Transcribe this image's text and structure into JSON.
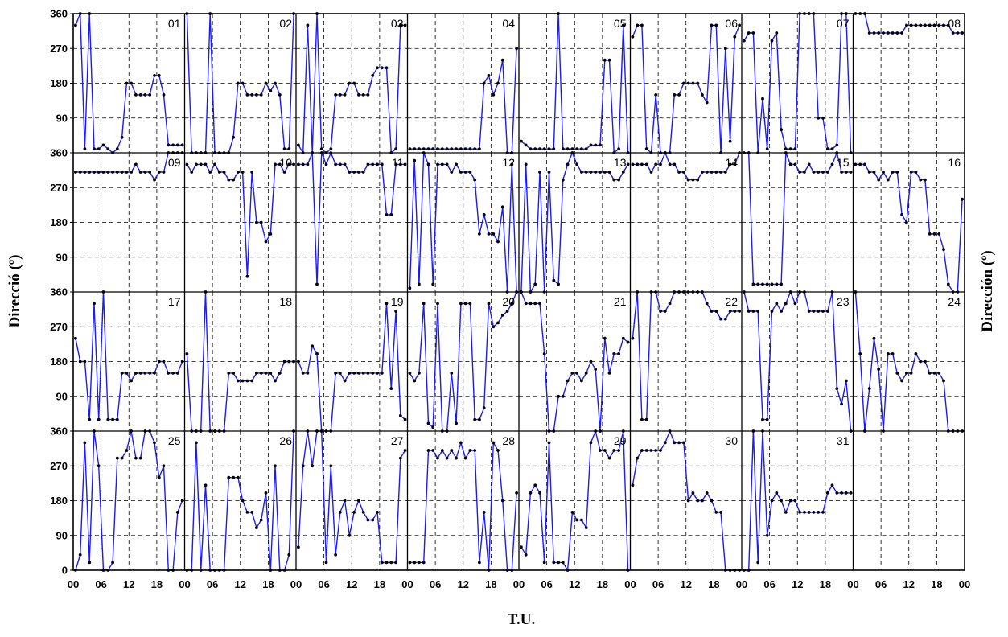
{
  "chart_data": {
    "type": "line",
    "xlabel": "T.U.",
    "ylabel_left": "Direcció (º)",
    "ylabel_right": "Dirección (º)",
    "ylim": [
      0,
      360
    ],
    "yticks": [
      "0",
      "90",
      "180",
      "270",
      "360"
    ],
    "xlim": [
      0,
      24
    ],
    "xticks": [
      "00",
      "06",
      "12",
      "18"
    ],
    "grid": "dashed",
    "colors": {
      "line": "#1a1aff",
      "marker": "#000000",
      "grid": "#000000"
    },
    "days": [
      {
        "label": "01",
        "values": [
          330,
          360,
          10,
          360,
          10,
          10,
          20,
          10,
          0,
          10,
          40,
          180,
          180,
          150,
          150,
          150,
          150,
          200,
          200,
          150,
          20,
          20,
          20,
          20
        ]
      },
      {
        "label": "02",
        "values": [
          360,
          0,
          0,
          0,
          0,
          360,
          0,
          0,
          0,
          0,
          40,
          180,
          180,
          150,
          150,
          150,
          150,
          180,
          160,
          180,
          150,
          10,
          10,
          360
        ]
      },
      {
        "label": "03",
        "values": [
          20,
          0,
          330,
          0,
          360,
          10,
          0,
          10,
          150,
          150,
          150,
          180,
          180,
          150,
          150,
          150,
          200,
          220,
          220,
          220,
          0,
          10,
          330,
          330
        ]
      },
      {
        "label": "04",
        "values": [
          10,
          10,
          10,
          10,
          10,
          10,
          10,
          10,
          10,
          10,
          10,
          10,
          10,
          10,
          10,
          10,
          180,
          200,
          150,
          180,
          240,
          0,
          0,
          270
        ]
      },
      {
        "label": "05",
        "values": [
          30,
          20,
          10,
          10,
          10,
          10,
          10,
          10,
          360,
          10,
          10,
          10,
          10,
          10,
          10,
          20,
          20,
          20,
          240,
          240,
          0,
          10,
          330,
          0
        ]
      },
      {
        "label": "06",
        "values": [
          300,
          330,
          330,
          10,
          0,
          150,
          0,
          0,
          0,
          150,
          150,
          180,
          180,
          180,
          180,
          150,
          130,
          330,
          330,
          0,
          270,
          30,
          300,
          330
        ]
      },
      {
        "label": "07",
        "values": [
          290,
          310,
          310,
          0,
          140,
          10,
          290,
          310,
          60,
          10,
          10,
          10,
          360,
          360,
          360,
          360,
          90,
          90,
          10,
          10,
          20,
          360,
          360,
          0
        ]
      },
      {
        "label": "08",
        "values": [
          360,
          360,
          360,
          310,
          310,
          310,
          310,
          310,
          310,
          310,
          310,
          330,
          330,
          330,
          330,
          330,
          330,
          330,
          330,
          330,
          330,
          310,
          310,
          310
        ]
      },
      {
        "label": "09",
        "values": [
          310,
          310,
          310,
          310,
          310,
          310,
          310,
          310,
          310,
          310,
          310,
          310,
          310,
          330,
          310,
          310,
          310,
          290,
          310,
          310,
          360,
          360,
          360,
          360
        ]
      },
      {
        "label": "10",
        "values": [
          330,
          310,
          330,
          330,
          330,
          310,
          330,
          310,
          310,
          290,
          290,
          310,
          310,
          40,
          310,
          180,
          180,
          130,
          150,
          330,
          330,
          310,
          330,
          330
        ]
      },
      {
        "label": "11",
        "values": [
          330,
          330,
          330,
          360,
          20,
          360,
          330,
          360,
          330,
          330,
          330,
          310,
          310,
          310,
          310,
          330,
          330,
          330,
          330,
          200,
          200,
          330,
          330,
          330
        ]
      },
      {
        "label": "12",
        "values": [
          10,
          340,
          20,
          360,
          330,
          20,
          330,
          330,
          330,
          310,
          330,
          310,
          310,
          310,
          290,
          150,
          200,
          150,
          150,
          130,
          220,
          0,
          330,
          0
        ]
      },
      {
        "label": "13",
        "values": [
          0,
          330,
          0,
          20,
          310,
          0,
          310,
          30,
          20,
          290,
          330,
          360,
          330,
          310,
          310,
          310,
          310,
          310,
          310,
          310,
          290,
          290,
          310,
          330
        ]
      },
      {
        "label": "14",
        "values": [
          330,
          330,
          330,
          330,
          310,
          330,
          330,
          360,
          330,
          330,
          310,
          310,
          290,
          290,
          290,
          310,
          310,
          310,
          310,
          310,
          310,
          330,
          330,
          360
        ]
      },
      {
        "label": "15",
        "values": [
          360,
          360,
          20,
          20,
          20,
          20,
          20,
          20,
          20,
          360,
          330,
          330,
          310,
          310,
          330,
          310,
          310,
          310,
          310,
          330,
          360,
          310,
          310,
          310
        ]
      },
      {
        "label": "16",
        "values": [
          330,
          330,
          330,
          310,
          310,
          290,
          310,
          290,
          310,
          310,
          200,
          180,
          310,
          310,
          290,
          290,
          150,
          150,
          150,
          110,
          20,
          0,
          0,
          240
        ]
      },
      {
        "label": "17",
        "values": [
          240,
          180,
          180,
          30,
          330,
          30,
          360,
          30,
          30,
          30,
          150,
          150,
          130,
          150,
          150,
          150,
          150,
          150,
          180,
          180,
          150,
          150,
          150,
          180
        ]
      },
      {
        "label": "18",
        "values": [
          200,
          0,
          0,
          0,
          360,
          0,
          0,
          0,
          0,
          150,
          150,
          130,
          130,
          130,
          130,
          150,
          150,
          150,
          150,
          130,
          150,
          180,
          180,
          180
        ]
      },
      {
        "label": "19",
        "values": [
          180,
          150,
          150,
          220,
          200,
          0,
          0,
          0,
          150,
          150,
          130,
          150,
          150,
          150,
          150,
          150,
          150,
          150,
          150,
          330,
          110,
          310,
          40,
          30
        ]
      },
      {
        "label": "20",
        "values": [
          150,
          130,
          150,
          330,
          20,
          10,
          330,
          0,
          0,
          150,
          20,
          330,
          330,
          330,
          30,
          30,
          60,
          330,
          270,
          280,
          300,
          310,
          330,
          360
        ]
      },
      {
        "label": "21",
        "values": [
          360,
          330,
          330,
          330,
          330,
          200,
          0,
          0,
          90,
          90,
          130,
          150,
          150,
          130,
          150,
          180,
          160,
          0,
          240,
          150,
          200,
          200,
          240,
          230
        ]
      },
      {
        "label": "22",
        "values": [
          240,
          360,
          30,
          30,
          360,
          360,
          310,
          310,
          330,
          360,
          360,
          360,
          360,
          360,
          360,
          360,
          330,
          310,
          310,
          290,
          290,
          310,
          310,
          310
        ]
      },
      {
        "label": "23",
        "values": [
          360,
          310,
          310,
          310,
          30,
          30,
          310,
          330,
          310,
          330,
          360,
          330,
          360,
          360,
          310,
          310,
          310,
          310,
          310,
          360,
          110,
          70,
          130,
          0
        ]
      },
      {
        "label": "24",
        "values": [
          360,
          200,
          0,
          110,
          240,
          160,
          0,
          200,
          200,
          150,
          130,
          150,
          150,
          200,
          180,
          180,
          150,
          150,
          150,
          130,
          0,
          0,
          0,
          0
        ]
      },
      {
        "label": "25",
        "values": [
          0,
          40,
          330,
          20,
          360,
          270,
          0,
          0,
          20,
          290,
          290,
          310,
          360,
          290,
          290,
          360,
          360,
          330,
          240,
          270,
          0,
          0,
          150,
          180
        ]
      },
      {
        "label": "26",
        "values": [
          0,
          0,
          330,
          0,
          220,
          0,
          0,
          0,
          0,
          240,
          240,
          240,
          180,
          150,
          150,
          110,
          130,
          200,
          0,
          270,
          0,
          0,
          40,
          360
        ]
      },
      {
        "label": "27",
        "values": [
          60,
          270,
          360,
          270,
          360,
          360,
          20,
          270,
          40,
          150,
          180,
          90,
          150,
          180,
          150,
          130,
          130,
          150,
          20,
          20,
          20,
          20,
          290,
          310
        ]
      },
      {
        "label": "28",
        "values": [
          20,
          20,
          20,
          20,
          310,
          310,
          290,
          310,
          290,
          310,
          290,
          330,
          290,
          310,
          310,
          20,
          150,
          0,
          330,
          310,
          180,
          0,
          0,
          200
        ]
      },
      {
        "label": "29",
        "values": [
          60,
          40,
          200,
          220,
          200,
          20,
          330,
          20,
          20,
          20,
          0,
          150,
          130,
          130,
          110,
          330,
          360,
          310,
          310,
          290,
          310,
          310,
          360,
          0
        ]
      },
      {
        "label": "30",
        "values": [
          220,
          290,
          310,
          310,
          310,
          310,
          310,
          330,
          360,
          330,
          330,
          330,
          180,
          200,
          180,
          180,
          200,
          180,
          150,
          150,
          0,
          0,
          0,
          0
        ]
      },
      {
        "label": "31",
        "values": [
          0,
          0,
          360,
          20,
          360,
          90,
          180,
          200,
          180,
          150,
          180,
          180,
          150,
          150,
          150,
          150,
          150,
          150,
          200,
          220,
          200,
          200,
          200,
          200
        ]
      }
    ]
  }
}
